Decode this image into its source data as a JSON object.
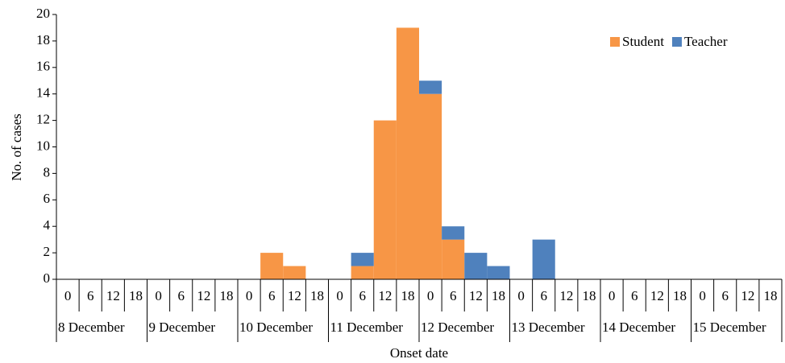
{
  "chart_data": {
    "type": "bar",
    "stacked": true,
    "y_label": "No. of cases",
    "x_label": "Onset date",
    "categories": [
      "0",
      "6",
      "12",
      "18",
      "0",
      "6",
      "12",
      "18",
      "0",
      "6",
      "12",
      "18",
      "0",
      "6",
      "12",
      "18",
      "0",
      "6",
      "12",
      "18",
      "0",
      "6",
      "12",
      "18",
      "0",
      "6",
      "12",
      "18",
      "0",
      "6",
      "12",
      "18"
    ],
    "groups": [
      "8 December",
      "9 December",
      "10 December",
      "11 December",
      "12 December",
      "13 December",
      "14 December",
      "15 December"
    ],
    "series": [
      {
        "name": "Student",
        "color": "#f79646",
        "values": [
          0,
          0,
          0,
          0,
          0,
          0,
          0,
          0,
          0,
          2,
          1,
          0,
          0,
          1,
          12,
          19,
          14,
          3,
          0,
          0,
          0,
          0,
          0,
          0,
          0,
          0,
          0,
          0,
          0,
          0,
          0,
          0
        ]
      },
      {
        "name": "Teacher",
        "color": "#4f81bd",
        "values": [
          0,
          0,
          0,
          0,
          0,
          0,
          0,
          0,
          0,
          0,
          0,
          0,
          0,
          1,
          0,
          0,
          1,
          1,
          2,
          1,
          0,
          3,
          0,
          0,
          0,
          0,
          0,
          0,
          0,
          0,
          0,
          0
        ]
      }
    ],
    "ylim": [
      0,
      20
    ],
    "yticks": [
      0,
      2,
      4,
      6,
      8,
      10,
      12,
      14,
      16,
      18,
      20
    ],
    "legend": "top-right"
  }
}
